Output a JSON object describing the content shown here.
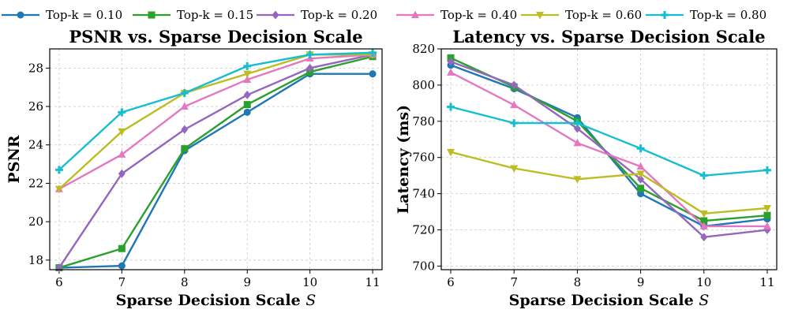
{
  "chart_data": [
    {
      "type": "line",
      "title": "PSNR vs. Sparse Decision Scale",
      "xlabel": "Sparse Decision Scale",
      "xlabel_symbol": "S",
      "ylabel": "PSNR",
      "x": [
        6,
        7,
        8,
        9,
        10,
        11
      ],
      "xlim": [
        5.85,
        11.15
      ],
      "ylim": [
        17.5,
        29.0
      ],
      "yticks": [
        18,
        20,
        22,
        24,
        26,
        28
      ],
      "grid": true,
      "series": [
        {
          "name": "Top-k = 0.10",
          "values": [
            17.6,
            17.7,
            23.7,
            25.7,
            27.7,
            27.7
          ]
        },
        {
          "name": "Top-k = 0.15",
          "values": [
            17.6,
            18.6,
            23.8,
            26.1,
            27.8,
            28.6
          ]
        },
        {
          "name": "Top-k = 0.20",
          "values": [
            17.6,
            22.5,
            24.8,
            26.6,
            28.0,
            28.7
          ]
        },
        {
          "name": "Top-k = 0.40",
          "values": [
            21.7,
            23.5,
            26.0,
            27.4,
            28.5,
            28.7
          ]
        },
        {
          "name": "Top-k = 0.60",
          "values": [
            21.7,
            24.7,
            26.7,
            27.7,
            28.7,
            28.7
          ]
        },
        {
          "name": "Top-k = 0.80",
          "values": [
            22.7,
            25.7,
            26.7,
            28.1,
            28.7,
            28.8
          ]
        }
      ]
    },
    {
      "type": "line",
      "title": "Latency vs. Sparse Decision Scale",
      "xlabel": "Sparse Decision Scale",
      "xlabel_symbol": "S",
      "ylabel": "Latency (ms)",
      "x": [
        6,
        7,
        8,
        9,
        10,
        11
      ],
      "xlim": [
        5.85,
        11.15
      ],
      "ylim": [
        698,
        820
      ],
      "yticks": [
        700,
        720,
        740,
        760,
        780,
        800,
        820
      ],
      "grid": true,
      "series": [
        {
          "name": "Top-k = 0.10",
          "values": [
            811,
            798,
            782,
            740,
            722,
            726
          ]
        },
        {
          "name": "Top-k = 0.15",
          "values": [
            815,
            799,
            780,
            743,
            725,
            728
          ]
        },
        {
          "name": "Top-k = 0.20",
          "values": [
            813,
            800,
            776,
            748,
            716,
            720
          ]
        },
        {
          "name": "Top-k = 0.40",
          "values": [
            807,
            789,
            768,
            755,
            722,
            722
          ]
        },
        {
          "name": "Top-k = 0.60",
          "values": [
            763,
            754,
            748,
            751,
            729,
            732
          ]
        },
        {
          "name": "Top-k = 0.80",
          "values": [
            788,
            779,
            779,
            765,
            750,
            753
          ]
        }
      ]
    }
  ],
  "legend": {
    "placement": "top",
    "entries": [
      {
        "label": "Top-k = 0.10",
        "color": "#1f77b4",
        "marker": "circle"
      },
      {
        "label": "Top-k = 0.15",
        "color": "#2ca02c",
        "marker": "square"
      },
      {
        "label": "Top-k = 0.20",
        "color": "#9467bd",
        "marker": "diamond"
      },
      {
        "label": "Top-k = 0.40",
        "color": "#e377c2",
        "marker": "triangle-up"
      },
      {
        "label": "Top-k = 0.60",
        "color": "#bcbd22",
        "marker": "triangle-down"
      },
      {
        "label": "Top-k = 0.80",
        "color": "#17becf",
        "marker": "plus"
      }
    ]
  }
}
